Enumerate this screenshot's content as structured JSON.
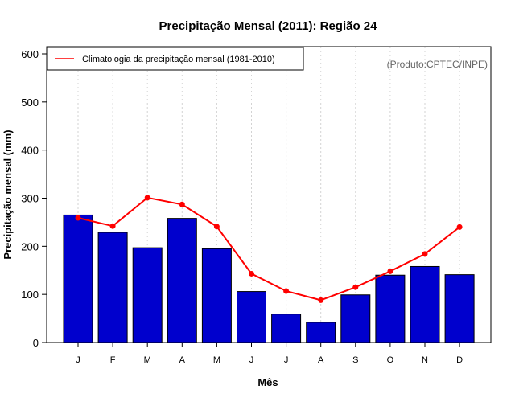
{
  "chart_data": {
    "type": "bar",
    "title": "Precipitação Mensal (2011): Região 24",
    "xlabel": "Mês",
    "ylabel": "Precipitação mensal (mm)",
    "credit": "(Produto:CPTEC/INPE)",
    "categories": [
      "J",
      "F",
      "M",
      "A",
      "M",
      "J",
      "J",
      "A",
      "S",
      "O",
      "N",
      "D"
    ],
    "ylim": [
      0,
      600
    ],
    "yticks": [
      0,
      100,
      200,
      300,
      400,
      500,
      600
    ],
    "grid": "vertical dotted",
    "legend_position": "top-left",
    "series": [
      {
        "name": "2011",
        "kind": "bar",
        "color": "#0000cd",
        "values": [
          265,
          229,
          197,
          258,
          195,
          106,
          59,
          42,
          99,
          140,
          158,
          141
        ]
      },
      {
        "name": "Climatologia da precipitação mensal (1981-2010)",
        "kind": "line",
        "color": "#ff0000",
        "values": [
          259,
          242,
          301,
          287,
          241,
          143,
          107,
          88,
          115,
          148,
          184,
          240
        ]
      }
    ]
  }
}
